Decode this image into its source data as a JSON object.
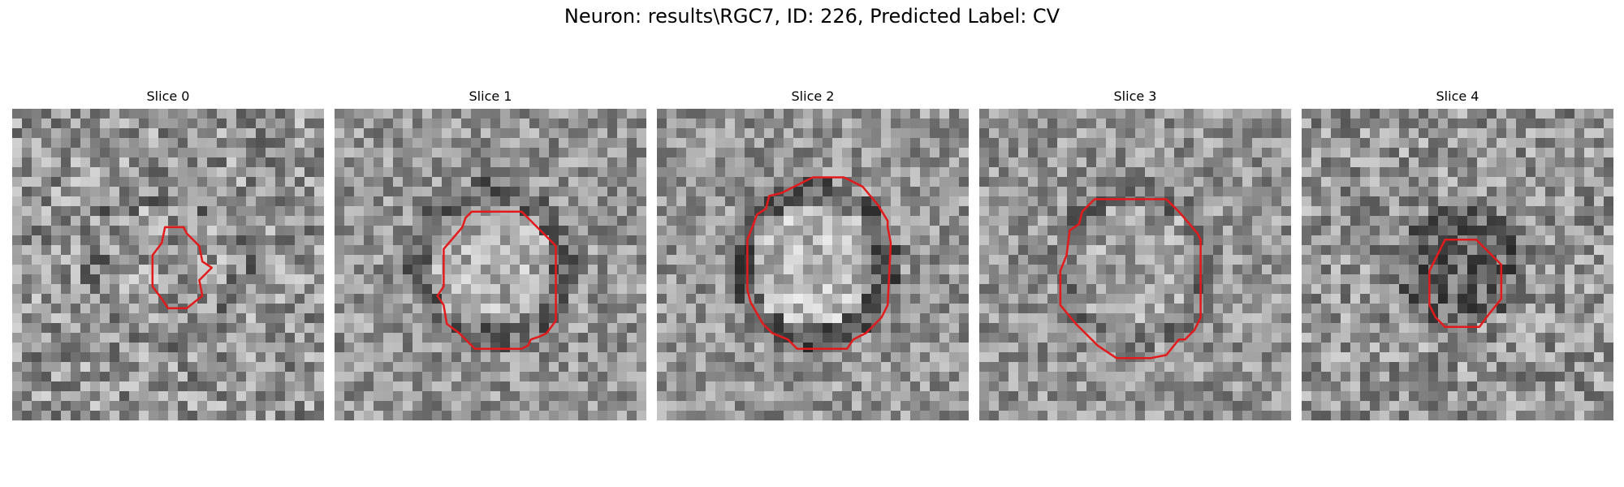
{
  "figure": {
    "title": "Neuron: results\\RGC7, ID: 226, Predicted Label: CV",
    "contour_color": "#e31a1c"
  },
  "panels": [
    {
      "title": "Slice 0",
      "seed": 11,
      "contrast": 0.16,
      "inner_bright": 0.02,
      "ring_dark": 0.08,
      "contour": [
        [
          0.49,
          0.38
        ],
        [
          0.55,
          0.38
        ],
        [
          0.56,
          0.4
        ],
        [
          0.6,
          0.44
        ],
        [
          0.61,
          0.49
        ],
        [
          0.64,
          0.51
        ],
        [
          0.6,
          0.55
        ],
        [
          0.61,
          0.6
        ],
        [
          0.56,
          0.64
        ],
        [
          0.5,
          0.64
        ],
        [
          0.48,
          0.61
        ],
        [
          0.45,
          0.57
        ],
        [
          0.45,
          0.47
        ],
        [
          0.48,
          0.43
        ]
      ]
    },
    {
      "title": "Slice 1",
      "seed": 23,
      "contrast": 0.13,
      "inner_bright": 0.1,
      "ring_dark": 0.16,
      "contour": [
        [
          0.44,
          0.33
        ],
        [
          0.6,
          0.33
        ],
        [
          0.7,
          0.43
        ],
        [
          0.71,
          0.44
        ],
        [
          0.71,
          0.68
        ],
        [
          0.68,
          0.72
        ],
        [
          0.66,
          0.73
        ],
        [
          0.63,
          0.74
        ],
        [
          0.62,
          0.76
        ],
        [
          0.6,
          0.77
        ],
        [
          0.45,
          0.77
        ],
        [
          0.4,
          0.72
        ],
        [
          0.36,
          0.69
        ],
        [
          0.35,
          0.63
        ],
        [
          0.33,
          0.6
        ],
        [
          0.35,
          0.57
        ],
        [
          0.35,
          0.45
        ],
        [
          0.41,
          0.38
        ],
        [
          0.42,
          0.35
        ]
      ]
    },
    {
      "title": "Slice 2",
      "seed": 37,
      "contrast": 0.13,
      "inner_bright": 0.14,
      "ring_dark": 0.22,
      "contour": [
        [
          0.48,
          0.23
        ],
        [
          0.5,
          0.22
        ],
        [
          0.6,
          0.22
        ],
        [
          0.62,
          0.23
        ],
        [
          0.66,
          0.25
        ],
        [
          0.71,
          0.31
        ],
        [
          0.74,
          0.36
        ],
        [
          0.74,
          0.38
        ],
        [
          0.75,
          0.43
        ],
        [
          0.74,
          0.63
        ],
        [
          0.72,
          0.67
        ],
        [
          0.67,
          0.72
        ],
        [
          0.65,
          0.73
        ],
        [
          0.63,
          0.74
        ],
        [
          0.61,
          0.77
        ],
        [
          0.45,
          0.77
        ],
        [
          0.42,
          0.74
        ],
        [
          0.37,
          0.72
        ],
        [
          0.34,
          0.69
        ],
        [
          0.3,
          0.62
        ],
        [
          0.29,
          0.58
        ],
        [
          0.29,
          0.42
        ],
        [
          0.31,
          0.37
        ],
        [
          0.32,
          0.34
        ],
        [
          0.35,
          0.32
        ],
        [
          0.36,
          0.28
        ],
        [
          0.4,
          0.27
        ]
      ]
    },
    {
      "title": "Slice 3",
      "seed": 51,
      "contrast": 0.13,
      "inner_bright": 0.05,
      "ring_dark": 0.12,
      "contour": [
        [
          0.33,
          0.33
        ],
        [
          0.37,
          0.29
        ],
        [
          0.6,
          0.29
        ],
        [
          0.64,
          0.33
        ],
        [
          0.7,
          0.4
        ],
        [
          0.71,
          0.42
        ],
        [
          0.71,
          0.67
        ],
        [
          0.69,
          0.71
        ],
        [
          0.66,
          0.74
        ],
        [
          0.64,
          0.74
        ],
        [
          0.6,
          0.79
        ],
        [
          0.55,
          0.8
        ],
        [
          0.44,
          0.8
        ],
        [
          0.38,
          0.76
        ],
        [
          0.31,
          0.69
        ],
        [
          0.26,
          0.63
        ],
        [
          0.26,
          0.52
        ],
        [
          0.28,
          0.47
        ],
        [
          0.29,
          0.39
        ],
        [
          0.32,
          0.37
        ]
      ]
    },
    {
      "title": "Slice 4",
      "seed": 67,
      "contrast": 0.15,
      "inner_bright": -0.18,
      "ring_dark": 0.02,
      "contour": [
        [
          0.46,
          0.42
        ],
        [
          0.56,
          0.42
        ],
        [
          0.6,
          0.46
        ],
        [
          0.64,
          0.5
        ],
        [
          0.64,
          0.61
        ],
        [
          0.6,
          0.66
        ],
        [
          0.57,
          0.7
        ],
        [
          0.46,
          0.7
        ],
        [
          0.43,
          0.67
        ],
        [
          0.41,
          0.63
        ],
        [
          0.41,
          0.52
        ],
        [
          0.44,
          0.46
        ]
      ]
    }
  ]
}
